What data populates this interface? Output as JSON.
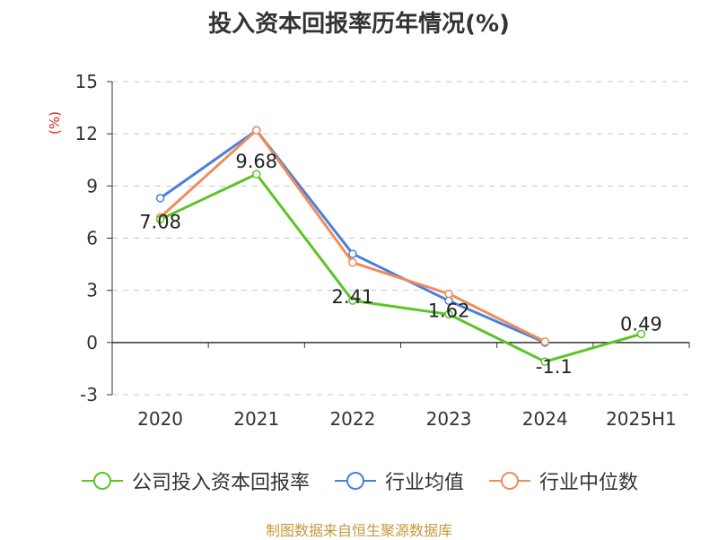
{
  "title": "投入资本回报率历年情况(%)",
  "unit_label": "(%)",
  "source": "制图数据来自恒生聚源数据库",
  "chart_data": {
    "type": "line",
    "categories": [
      "2020",
      "2021",
      "2022",
      "2023",
      "2024",
      "2025H1"
    ],
    "ylim": [
      -3,
      15
    ],
    "yticks": [
      -3,
      0,
      3,
      6,
      9,
      12,
      15
    ],
    "grid": true,
    "legend_position": "bottom",
    "series": [
      {
        "name": "公司投入资本回报率",
        "color": "#5cc424",
        "values": [
          7.08,
          9.68,
          2.41,
          1.62,
          -1.1,
          0.49
        ],
        "labels": [
          "7.08",
          "9.68",
          "2.41",
          "1.62",
          "-1.1",
          "0.49"
        ]
      },
      {
        "name": "行业均值",
        "color": "#4a7fdc",
        "values": [
          8.3,
          12.2,
          5.1,
          2.4,
          0.0,
          null
        ]
      },
      {
        "name": "行业中位数",
        "color": "#f08c5a",
        "values": [
          7.2,
          12.2,
          4.6,
          2.8,
          0.05,
          null
        ]
      }
    ]
  }
}
